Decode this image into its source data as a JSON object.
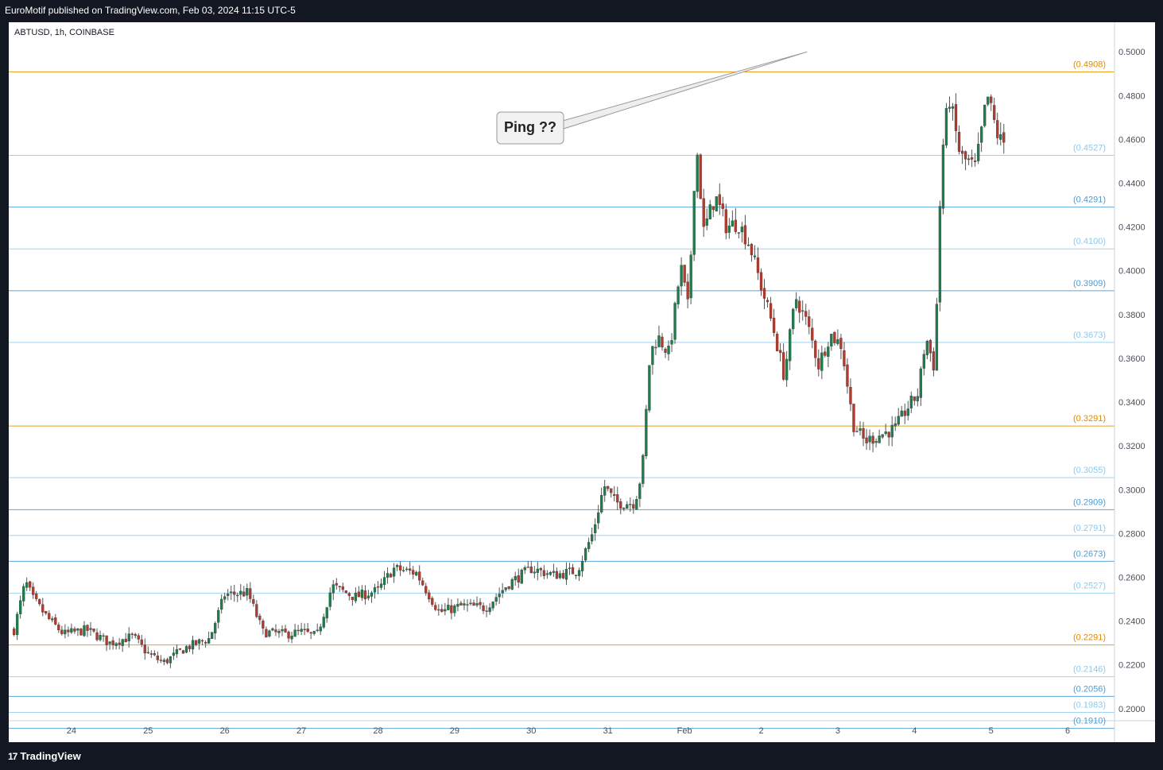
{
  "header": {
    "publisher_line": "EuroMotif published on TradingView.com, Feb 03, 2024 11:15 UTC-5"
  },
  "symbol_line": "ABTUSD, 1h, COINBASE",
  "footer": {
    "brand": "TradingView",
    "logo_glyph": "17"
  },
  "annotation": {
    "text": "Ping ??"
  },
  "chart_data": {
    "type": "candlestick",
    "symbol": "ABTUSD",
    "interval": "1h",
    "exchange": "COINBASE",
    "y_ticks": [
      "0.5000",
      "0.4800",
      "0.4600",
      "0.4400",
      "0.4200",
      "0.4000",
      "0.3800",
      "0.3600",
      "0.3400",
      "0.3200",
      "0.3000",
      "0.2800",
      "0.2600",
      "0.2400",
      "0.2200",
      "0.2000"
    ],
    "ylim": [
      0.1945,
      0.5135
    ],
    "x_ticks": [
      {
        "label": "24",
        "day": 1
      },
      {
        "label": "25",
        "day": 2
      },
      {
        "label": "26",
        "day": 3
      },
      {
        "label": "27",
        "day": 4
      },
      {
        "label": "28",
        "day": 5
      },
      {
        "label": "29",
        "day": 6
      },
      {
        "label": "30",
        "day": 7
      },
      {
        "label": "31",
        "day": 8
      },
      {
        "label": "Feb",
        "day": 9
      },
      {
        "label": "2",
        "day": 10
      },
      {
        "label": "3",
        "day": 11
      },
      {
        "label": "4",
        "day": 12
      },
      {
        "label": "5",
        "day": 13
      },
      {
        "label": "6",
        "day": 14
      }
    ],
    "levels": [
      {
        "label": "(0.4908)",
        "value": 0.4908,
        "color": "#e6a11f",
        "text_color": "#e08a00"
      },
      {
        "label": "(0.4527)",
        "value": 0.4527,
        "color": "#9fd3ef",
        "text_color": "#8ec9ea"
      },
      {
        "label": "(0.4291)",
        "value": 0.4291,
        "color": "#5ba5d8",
        "text_color": "#4f9bd0"
      },
      {
        "label": "(0.4100)",
        "value": 0.41,
        "color": "#9fd3ef",
        "text_color": "#8ec9ea"
      },
      {
        "label": "(0.3909)",
        "value": 0.3909,
        "color": "#5ba5d8",
        "text_color": "#4f9bd0"
      },
      {
        "label": "(0.3673)",
        "value": 0.3673,
        "color": "#9fd3ef",
        "text_color": "#8ec9ea"
      },
      {
        "label": "(0.3291)",
        "value": 0.3291,
        "color": "#e6a11f",
        "text_color": "#e08a00"
      },
      {
        "label": "(0.3055)",
        "value": 0.3055,
        "color": "#9fd3ef",
        "text_color": "#8ec9ea"
      },
      {
        "label": "(0.2909)",
        "value": 0.2909,
        "color": "#5ba5d8",
        "text_color": "#4f9bd0"
      },
      {
        "label": "(0.2791)",
        "value": 0.2791,
        "color": "#9fd3ef",
        "text_color": "#8ec9ea"
      },
      {
        "label": "(0.2673)",
        "value": 0.2673,
        "color": "#5ba5d8",
        "text_color": "#4f9bd0"
      },
      {
        "label": "(0.2527)",
        "value": 0.2527,
        "color": "#9fd3ef",
        "text_color": "#8ec9ea"
      },
      {
        "label": "(0.2291)",
        "value": 0.2291,
        "color": "#e6a11f",
        "text_color": "#e08a00"
      },
      {
        "label": "(0.2146)",
        "value": 0.2146,
        "color": "#9fd3ef",
        "text_color": "#8ec9ea"
      },
      {
        "label": "(0.2056)",
        "value": 0.2056,
        "color": "#5ba5d8",
        "text_color": "#4f9bd0"
      },
      {
        "label": "(0.1983)",
        "value": 0.1983,
        "color": "#9fd3ef",
        "text_color": "#8ec9ea"
      },
      {
        "label": "(0.1910)",
        "value": 0.191,
        "color": "#5ba5d8",
        "text_color": "#4f9bd0"
      }
    ],
    "callout": {
      "text": "Ping ??",
      "target_value": 0.5,
      "target_day": 10.6
    },
    "colors": {
      "up": "#1e7d4c",
      "down": "#b23a2e",
      "wick": "#555555"
    },
    "price_anchors": [
      [
        0.25,
        0.236
      ],
      [
        0.4,
        0.258
      ],
      [
        0.5,
        0.25
      ],
      [
        0.7,
        0.241
      ],
      [
        0.9,
        0.234
      ],
      [
        1.2,
        0.236
      ],
      [
        1.5,
        0.23
      ],
      [
        1.8,
        0.233
      ],
      [
        2.0,
        0.225
      ],
      [
        2.2,
        0.221
      ],
      [
        2.5,
        0.228
      ],
      [
        2.8,
        0.232
      ],
      [
        3.0,
        0.252
      ],
      [
        3.3,
        0.253
      ],
      [
        3.5,
        0.235
      ],
      [
        3.8,
        0.234
      ],
      [
        4.0,
        0.235
      ],
      [
        4.2,
        0.233
      ],
      [
        4.4,
        0.256
      ],
      [
        4.7,
        0.251
      ],
      [
        5.0,
        0.254
      ],
      [
        5.2,
        0.264
      ],
      [
        5.5,
        0.262
      ],
      [
        5.8,
        0.244
      ],
      [
        6.1,
        0.247
      ],
      [
        6.4,
        0.246
      ],
      [
        6.7,
        0.257
      ],
      [
        7.0,
        0.264
      ],
      [
        7.3,
        0.261
      ],
      [
        7.6,
        0.263
      ],
      [
        7.8,
        0.28
      ],
      [
        7.95,
        0.302
      ],
      [
        8.1,
        0.294
      ],
      [
        8.35,
        0.294
      ],
      [
        8.45,
        0.309
      ],
      [
        8.55,
        0.362
      ],
      [
        8.65,
        0.37
      ],
      [
        8.8,
        0.362
      ],
      [
        8.95,
        0.402
      ],
      [
        9.05,
        0.382
      ],
      [
        9.15,
        0.46
      ],
      [
        9.25,
        0.418
      ],
      [
        9.4,
        0.434
      ],
      [
        9.55,
        0.42
      ],
      [
        9.7,
        0.422
      ],
      [
        9.85,
        0.412
      ],
      [
        10.0,
        0.393
      ],
      [
        10.15,
        0.375
      ],
      [
        10.3,
        0.352
      ],
      [
        10.45,
        0.388
      ],
      [
        10.6,
        0.376
      ],
      [
        10.75,
        0.357
      ],
      [
        10.9,
        0.371
      ],
      [
        11.05,
        0.366
      ],
      [
        11.2,
        0.33
      ],
      [
        11.35,
        0.322
      ],
      [
        11.55,
        0.325
      ],
      [
        11.75,
        0.328
      ],
      [
        11.9,
        0.337
      ],
      [
        12.05,
        0.344
      ],
      [
        12.15,
        0.37
      ],
      [
        12.25,
        0.357
      ],
      [
        12.3,
        0.39
      ],
      [
        12.35,
        0.45
      ],
      [
        12.45,
        0.48
      ],
      [
        12.6,
        0.452
      ],
      [
        12.8,
        0.447
      ],
      [
        12.95,
        0.48
      ],
      [
        13.1,
        0.46
      ],
      [
        13.2,
        0.458
      ]
    ]
  }
}
